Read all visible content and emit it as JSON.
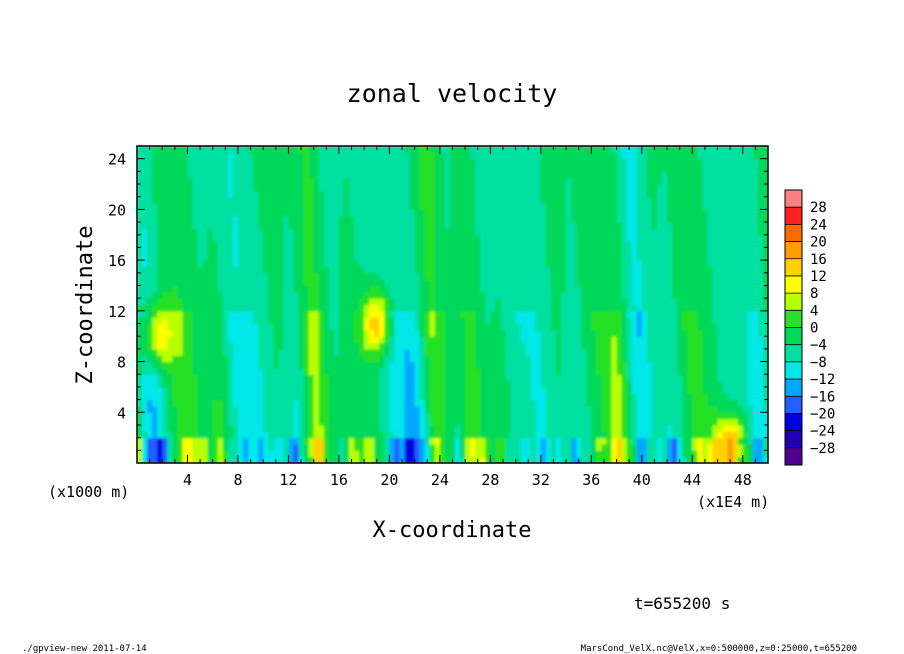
{
  "chart_data": {
    "type": "heatmap",
    "title": "zonal velocity",
    "xlabel": "X-coordinate",
    "ylabel": "Z-coordinate",
    "x_unit_label": "(x1E4 m)",
    "y_unit_label": "(x1000 m)",
    "xlim": [
      0,
      50
    ],
    "ylim": [
      0,
      25
    ],
    "x_ticks": [
      4,
      8,
      12,
      16,
      20,
      24,
      28,
      32,
      36,
      40,
      44,
      48
    ],
    "y_ticks": [
      4,
      8,
      12,
      16,
      20,
      24
    ],
    "colorbar": {
      "levels": [
        28,
        24,
        20,
        16,
        12,
        8,
        4,
        0,
        -4,
        -8,
        -12,
        -16,
        -20,
        -24,
        -28
      ],
      "colors": [
        "#ff8080",
        "#ff2020",
        "#ff6a00",
        "#ff9c00",
        "#ffd000",
        "#ffff00",
        "#b8ff00",
        "#28e028",
        "#00d85a",
        "#00e0a0",
        "#00e8e8",
        "#00a8ff",
        "#2060ff",
        "#0000e0",
        "#2000b0",
        "#500090"
      ],
      "cell_colors_note_order": "top_to_bottom"
    },
    "field_summary": {
      "background_value": -4,
      "near_surface_range": [
        -20,
        20
      ],
      "notable_features": [
        {
          "x": 1.5,
          "z": 10,
          "value": 14
        },
        {
          "x": 19,
          "z": 11,
          "value": 16
        },
        {
          "x": 47,
          "z": 1,
          "value": 22
        }
      ]
    }
  },
  "annotations": {
    "time_label": "t=655200 s",
    "footer_left": "./gpview-new   2011-07-14",
    "footer_right": "MarsCond_VelX.nc@VelX,x=0:500000,z=0:25000,t=655200"
  }
}
